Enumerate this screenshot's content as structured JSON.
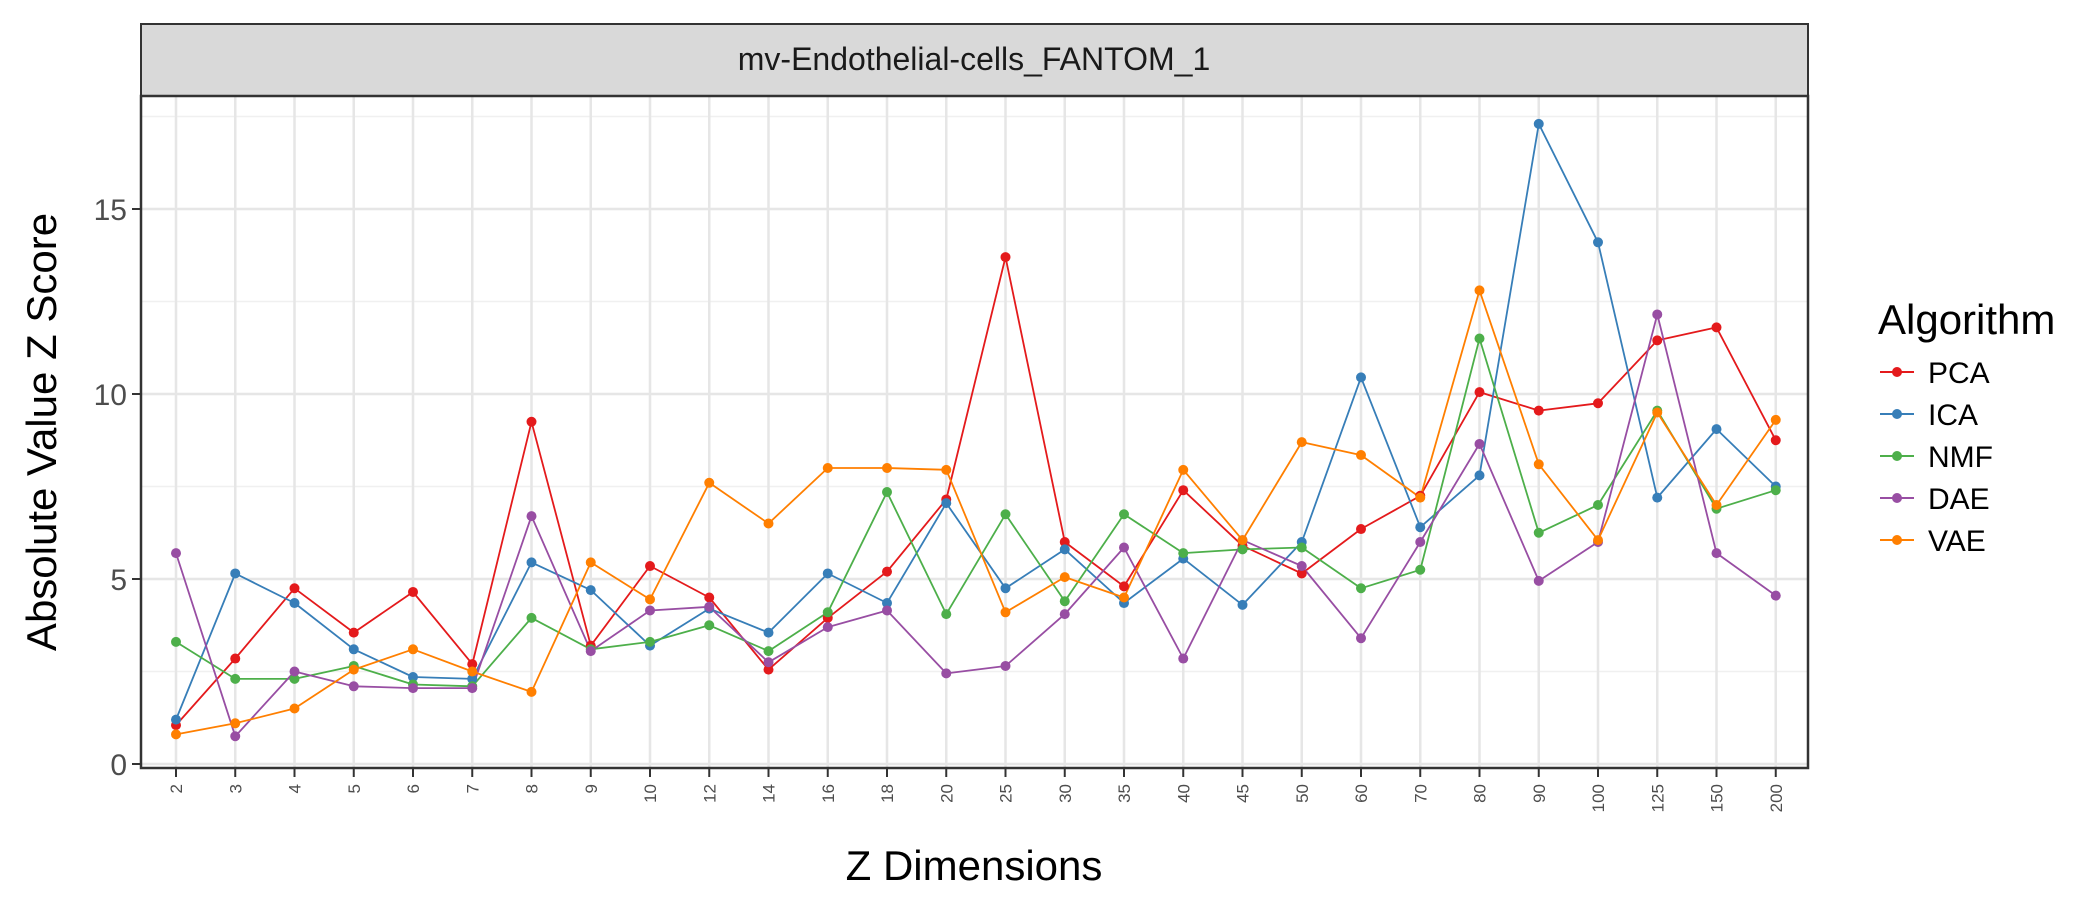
{
  "chart_data": {
    "type": "line",
    "facet_title": "mv-Endothelial-cells_FANTOM_1",
    "xlabel": "Z Dimensions",
    "ylabel": "Absolute Value Z Score",
    "ylim": [
      0,
      18
    ],
    "y_ticks": [
      0,
      5,
      10,
      15
    ],
    "grid": true,
    "legend_position": "right",
    "legend_title": "Algorithm",
    "categories": [
      "2",
      "3",
      "4",
      "5",
      "6",
      "7",
      "8",
      "9",
      "10",
      "12",
      "14",
      "16",
      "18",
      "20",
      "25",
      "30",
      "35",
      "40",
      "45",
      "50",
      "60",
      "70",
      "80",
      "90",
      "100",
      "125",
      "150",
      "200"
    ],
    "series": [
      {
        "name": "PCA",
        "color": "#e41a1c",
        "values": [
          1.05,
          2.85,
          4.75,
          3.55,
          4.65,
          2.7,
          9.25,
          3.2,
          5.35,
          4.5,
          2.55,
          3.95,
          5.2,
          7.15,
          13.7,
          6.0,
          4.8,
          7.4,
          5.9,
          5.15,
          6.35,
          7.25,
          10.05,
          9.55,
          9.75,
          11.45,
          11.8,
          8.75
        ]
      },
      {
        "name": "ICA",
        "color": "#377eb8",
        "values": [
          1.2,
          5.15,
          4.35,
          3.1,
          2.35,
          2.3,
          5.45,
          4.7,
          3.2,
          4.2,
          3.55,
          5.15,
          4.35,
          7.05,
          4.75,
          5.8,
          4.35,
          5.55,
          4.3,
          6.0,
          10.45,
          6.4,
          7.8,
          17.3,
          14.1,
          7.2,
          9.05,
          7.5
        ]
      },
      {
        "name": "NMF",
        "color": "#4daf4a",
        "values": [
          3.3,
          2.3,
          2.3,
          2.65,
          2.15,
          2.1,
          3.95,
          3.1,
          3.3,
          3.75,
          3.05,
          4.1,
          7.35,
          4.05,
          6.75,
          4.4,
          6.75,
          5.7,
          5.8,
          5.85,
          4.75,
          5.25,
          11.5,
          6.25,
          7.0,
          9.55,
          6.9,
          7.4
        ]
      },
      {
        "name": "DAE",
        "color": "#984ea3",
        "values": [
          5.7,
          0.75,
          2.5,
          2.1,
          2.05,
          2.05,
          6.7,
          3.05,
          4.15,
          4.25,
          2.75,
          3.7,
          4.15,
          2.45,
          2.65,
          4.05,
          5.85,
          2.85,
          6.05,
          5.35,
          3.4,
          6.0,
          8.65,
          4.95,
          6.0,
          12.15,
          5.7,
          4.55
        ]
      },
      {
        "name": "VAE",
        "color": "#ff7f00",
        "values": [
          0.8,
          1.1,
          1.5,
          2.55,
          3.1,
          2.5,
          1.95,
          5.45,
          4.45,
          7.6,
          6.5,
          8.0,
          8.0,
          7.95,
          4.1,
          5.05,
          4.5,
          7.95,
          6.05,
          8.7,
          8.35,
          7.2,
          12.8,
          8.1,
          6.05,
          9.5,
          7.0,
          9.3
        ]
      }
    ]
  }
}
